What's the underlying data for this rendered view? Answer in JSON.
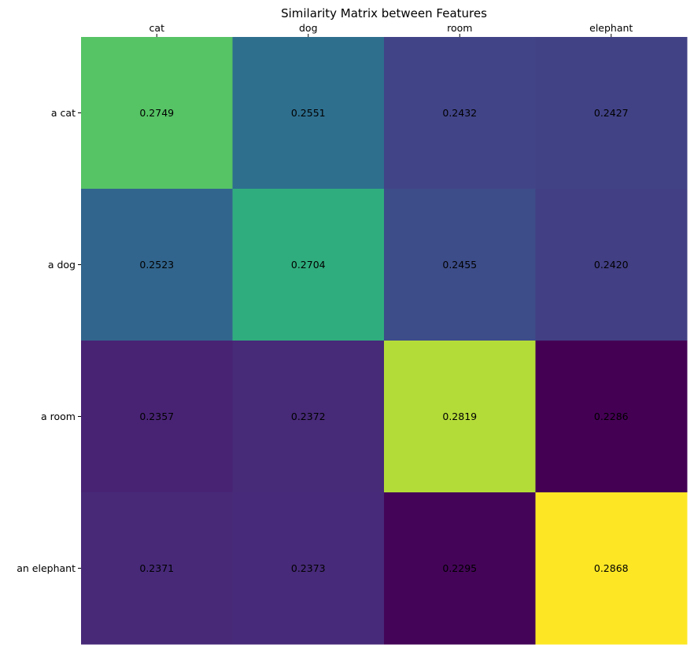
{
  "chart_data": {
    "type": "heatmap",
    "title": "Similarity Matrix between Features",
    "xlabel": "",
    "ylabel": "",
    "x_categories": [
      "cat",
      "dog",
      "room",
      "elephant"
    ],
    "y_categories": [
      "a cat",
      "a dog",
      "a room",
      "an elephant"
    ],
    "values": [
      [
        0.2749,
        0.2551,
        0.2432,
        0.2427
      ],
      [
        0.2523,
        0.2704,
        0.2455,
        0.242
      ],
      [
        0.2357,
        0.2372,
        0.2819,
        0.2286
      ],
      [
        0.2371,
        0.2373,
        0.2295,
        0.2868
      ]
    ],
    "value_labels": [
      [
        "0.2749",
        "0.2551",
        "0.2432",
        "0.2427"
      ],
      [
        "0.2523",
        "0.2704",
        "0.2455",
        "0.2420"
      ],
      [
        "0.2357",
        "0.2372",
        "0.2819",
        "0.2286"
      ],
      [
        "0.2371",
        "0.2373",
        "0.2295",
        "0.2868"
      ]
    ],
    "x_ticks_position": "top",
    "colormap": "viridis",
    "color_range": [
      0.2286,
      0.2868
    ],
    "grid": false,
    "colorbar": false
  }
}
